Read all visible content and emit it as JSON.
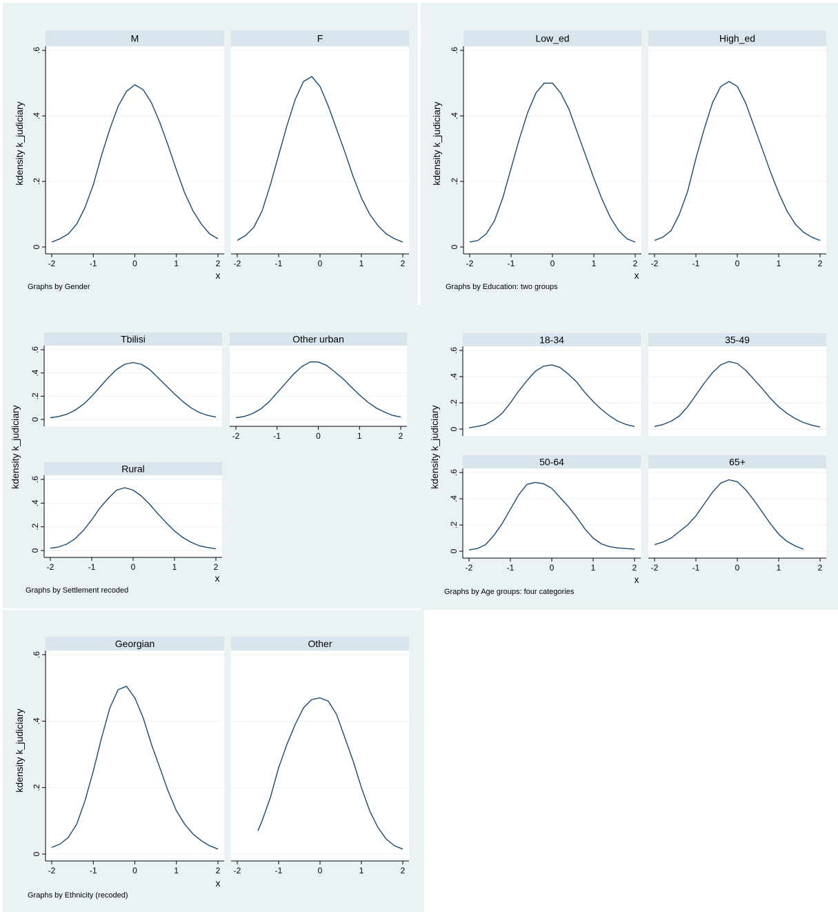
{
  "style": {
    "outer_bg": "#eaf2f3",
    "plot_bg": "#ffffff",
    "strip_bg": "#d9e5ec",
    "grid_color": "#eaf2f3",
    "line_color": "#1a476f",
    "text_color": "#000000"
  },
  "chart_data": [
    {
      "type": "line",
      "note": "Graphs by Gender",
      "ylabel": "kdensity k_judiciary",
      "xlabel": "x",
      "xlim": [
        -2,
        2
      ],
      "ylim": [
        0,
        0.6
      ],
      "xticks": [
        "-2",
        "-1",
        "0",
        "1",
        "2"
      ],
      "yticks": [
        "0",
        ".2",
        ".4",
        ".6"
      ],
      "panels": [
        {
          "label": "M",
          "x": [
            -2,
            -1.8,
            -1.6,
            -1.4,
            -1.2,
            -1.0,
            -0.8,
            -0.6,
            -0.4,
            -0.2,
            0,
            0.2,
            0.4,
            0.6,
            0.8,
            1.0,
            1.2,
            1.4,
            1.6,
            1.8,
            2.0
          ],
          "y": [
            0.015,
            0.025,
            0.04,
            0.07,
            0.12,
            0.19,
            0.28,
            0.36,
            0.43,
            0.475,
            0.495,
            0.48,
            0.44,
            0.38,
            0.31,
            0.235,
            0.165,
            0.11,
            0.07,
            0.04,
            0.025
          ]
        },
        {
          "label": "F",
          "x": [
            -2,
            -1.8,
            -1.6,
            -1.4,
            -1.2,
            -1.0,
            -0.8,
            -0.6,
            -0.4,
            -0.2,
            0,
            0.2,
            0.4,
            0.6,
            0.8,
            1.0,
            1.2,
            1.4,
            1.6,
            1.8,
            2.0
          ],
          "y": [
            0.02,
            0.035,
            0.06,
            0.11,
            0.19,
            0.28,
            0.37,
            0.45,
            0.505,
            0.52,
            0.49,
            0.43,
            0.36,
            0.29,
            0.215,
            0.15,
            0.1,
            0.065,
            0.04,
            0.025,
            0.015
          ]
        }
      ]
    },
    {
      "type": "line",
      "note": "Graphs by Education: two groups",
      "ylabel": "kdensity k_judiciary",
      "xlabel": "x",
      "xlim": [
        -2,
        2
      ],
      "ylim": [
        0,
        0.6
      ],
      "xticks": [
        "-2",
        "-1",
        "0",
        "1",
        "2"
      ],
      "yticks": [
        "0",
        ".2",
        ".4",
        ".6"
      ],
      "panels": [
        {
          "label": "Low_ed",
          "x": [
            -2,
            -1.8,
            -1.6,
            -1.4,
            -1.2,
            -1.0,
            -0.8,
            -0.6,
            -0.4,
            -0.2,
            0,
            0.2,
            0.4,
            0.6,
            0.8,
            1.0,
            1.2,
            1.4,
            1.6,
            1.8,
            2.0
          ],
          "y": [
            0.015,
            0.02,
            0.04,
            0.08,
            0.15,
            0.24,
            0.33,
            0.41,
            0.47,
            0.5,
            0.5,
            0.47,
            0.42,
            0.35,
            0.28,
            0.21,
            0.145,
            0.09,
            0.05,
            0.025,
            0.015
          ]
        },
        {
          "label": "High_ed",
          "x": [
            -2,
            -1.8,
            -1.6,
            -1.4,
            -1.2,
            -1.0,
            -0.8,
            -0.6,
            -0.4,
            -0.2,
            0,
            0.2,
            0.4,
            0.6,
            0.8,
            1.0,
            1.2,
            1.4,
            1.6,
            1.8,
            2.0
          ],
          "y": [
            0.02,
            0.03,
            0.05,
            0.1,
            0.17,
            0.27,
            0.36,
            0.44,
            0.49,
            0.505,
            0.49,
            0.44,
            0.37,
            0.3,
            0.23,
            0.165,
            0.11,
            0.07,
            0.045,
            0.03,
            0.02
          ]
        }
      ]
    },
    {
      "type": "line",
      "note": "Graphs by Settlement recoded",
      "ylabel": "kdensity k_judiciary",
      "xlabel": "x",
      "xlim": [
        -2,
        2
      ],
      "ylim": [
        0,
        0.6
      ],
      "xticks": [
        "-2",
        "-1",
        "0",
        "1",
        "2"
      ],
      "yticks": [
        "0",
        ".2",
        ".4",
        ".6"
      ],
      "panels": [
        {
          "label": "Tbilisi",
          "x": [
            -2,
            -1.8,
            -1.6,
            -1.4,
            -1.2,
            -1.0,
            -0.8,
            -0.6,
            -0.4,
            -0.2,
            0,
            0.2,
            0.4,
            0.6,
            0.8,
            1.0,
            1.2,
            1.4,
            1.6,
            1.8,
            2.0
          ],
          "y": [
            0.015,
            0.025,
            0.045,
            0.08,
            0.13,
            0.2,
            0.28,
            0.36,
            0.43,
            0.475,
            0.49,
            0.475,
            0.43,
            0.36,
            0.29,
            0.22,
            0.155,
            0.1,
            0.06,
            0.035,
            0.02
          ]
        },
        {
          "label": "Other urban",
          "x": [
            -2,
            -1.8,
            -1.6,
            -1.4,
            -1.2,
            -1.0,
            -0.8,
            -0.6,
            -0.4,
            -0.2,
            0,
            0.2,
            0.4,
            0.6,
            0.8,
            1.0,
            1.2,
            1.4,
            1.6,
            1.8,
            2.0
          ],
          "y": [
            0.015,
            0.025,
            0.05,
            0.09,
            0.15,
            0.23,
            0.31,
            0.39,
            0.455,
            0.495,
            0.495,
            0.465,
            0.41,
            0.35,
            0.28,
            0.21,
            0.15,
            0.1,
            0.065,
            0.035,
            0.02
          ]
        },
        {
          "label": "Rural",
          "x": [
            -2,
            -1.8,
            -1.6,
            -1.4,
            -1.2,
            -1.0,
            -0.8,
            -0.6,
            -0.4,
            -0.2,
            0,
            0.2,
            0.4,
            0.6,
            0.8,
            1.0,
            1.2,
            1.4,
            1.6,
            1.8,
            2.0
          ],
          "y": [
            0.02,
            0.03,
            0.055,
            0.1,
            0.17,
            0.26,
            0.36,
            0.44,
            0.51,
            0.53,
            0.51,
            0.46,
            0.39,
            0.31,
            0.235,
            0.165,
            0.11,
            0.07,
            0.04,
            0.025,
            0.015
          ]
        }
      ]
    },
    {
      "type": "line",
      "note": "Graphs by Age groups: four categories",
      "ylabel": "kdensity k_judiciary",
      "xlabel": "x",
      "xlim": [
        -2,
        2
      ],
      "ylim": [
        0,
        0.6
      ],
      "xticks": [
        "-2",
        "-1",
        "0",
        "1",
        "2"
      ],
      "yticks": [
        "0",
        ".2",
        ".4",
        ".6"
      ],
      "panels": [
        {
          "label": "18-34",
          "x": [
            -2,
            -1.8,
            -1.6,
            -1.4,
            -1.2,
            -1.0,
            -0.8,
            -0.6,
            -0.4,
            -0.2,
            0,
            0.2,
            0.4,
            0.6,
            0.8,
            1.0,
            1.2,
            1.4,
            1.6,
            1.8,
            2.0
          ],
          "y": [
            0.01,
            0.02,
            0.035,
            0.07,
            0.12,
            0.2,
            0.29,
            0.37,
            0.44,
            0.48,
            0.49,
            0.47,
            0.42,
            0.36,
            0.28,
            0.21,
            0.15,
            0.1,
            0.06,
            0.035,
            0.02
          ]
        },
        {
          "label": "35-49",
          "x": [
            -2,
            -1.8,
            -1.6,
            -1.4,
            -1.2,
            -1.0,
            -0.8,
            -0.6,
            -0.4,
            -0.2,
            0,
            0.2,
            0.4,
            0.6,
            0.8,
            1.0,
            1.2,
            1.4,
            1.6,
            1.8,
            2.0
          ],
          "y": [
            0.02,
            0.035,
            0.06,
            0.1,
            0.17,
            0.26,
            0.35,
            0.43,
            0.49,
            0.515,
            0.5,
            0.45,
            0.38,
            0.31,
            0.235,
            0.17,
            0.12,
            0.08,
            0.05,
            0.03,
            0.015
          ]
        },
        {
          "label": "50-64",
          "x": [
            -2,
            -1.8,
            -1.6,
            -1.4,
            -1.2,
            -1.0,
            -0.8,
            -0.6,
            -0.4,
            -0.2,
            0,
            0.2,
            0.4,
            0.6,
            0.8,
            1.0,
            1.2,
            1.4,
            1.6,
            1.8,
            2.0
          ],
          "y": [
            0.01,
            0.02,
            0.05,
            0.12,
            0.21,
            0.32,
            0.43,
            0.51,
            0.525,
            0.515,
            0.48,
            0.41,
            0.34,
            0.26,
            0.17,
            0.1,
            0.055,
            0.035,
            0.025,
            0.02,
            0.015
          ]
        },
        {
          "label": "65+",
          "x": [
            -2,
            -1.8,
            -1.6,
            -1.4,
            -1.2,
            -1.0,
            -0.8,
            -0.6,
            -0.4,
            -0.2,
            0,
            0.2,
            0.4,
            0.6,
            0.8,
            1.0,
            1.2,
            1.4,
            1.6
          ],
          "y": [
            0.05,
            0.07,
            0.1,
            0.15,
            0.2,
            0.27,
            0.36,
            0.45,
            0.52,
            0.545,
            0.53,
            0.47,
            0.39,
            0.3,
            0.21,
            0.13,
            0.075,
            0.04,
            0.015
          ]
        }
      ]
    },
    {
      "type": "line",
      "note": "Graphs by Ethnicity (recoded)",
      "ylabel": "kdensity k_judiciary",
      "xlabel": "x",
      "xlim": [
        -2,
        2
      ],
      "ylim": [
        0,
        0.6
      ],
      "xticks": [
        "-2",
        "-1",
        "0",
        "1",
        "2"
      ],
      "yticks": [
        "0",
        ".2",
        ".4",
        ".6"
      ],
      "panels": [
        {
          "label": "Georgian",
          "x": [
            -2,
            -1.8,
            -1.6,
            -1.4,
            -1.2,
            -1.0,
            -0.8,
            -0.6,
            -0.4,
            -0.2,
            0,
            0.2,
            0.4,
            0.6,
            0.8,
            1.0,
            1.2,
            1.4,
            1.6,
            1.8,
            2.0
          ],
          "y": [
            0.02,
            0.03,
            0.05,
            0.09,
            0.16,
            0.25,
            0.35,
            0.44,
            0.495,
            0.505,
            0.47,
            0.41,
            0.33,
            0.26,
            0.19,
            0.13,
            0.09,
            0.06,
            0.04,
            0.025,
            0.015
          ]
        },
        {
          "label": "Other",
          "x": [
            -1.5,
            -1.4,
            -1.2,
            -1.0,
            -0.8,
            -0.6,
            -0.4,
            -0.2,
            0,
            0.2,
            0.4,
            0.6,
            0.8,
            1.0,
            1.2,
            1.4,
            1.6,
            1.8,
            2.0
          ],
          "y": [
            0.07,
            0.1,
            0.17,
            0.26,
            0.33,
            0.39,
            0.44,
            0.465,
            0.47,
            0.46,
            0.42,
            0.35,
            0.28,
            0.2,
            0.13,
            0.08,
            0.045,
            0.025,
            0.015
          ]
        }
      ]
    }
  ]
}
